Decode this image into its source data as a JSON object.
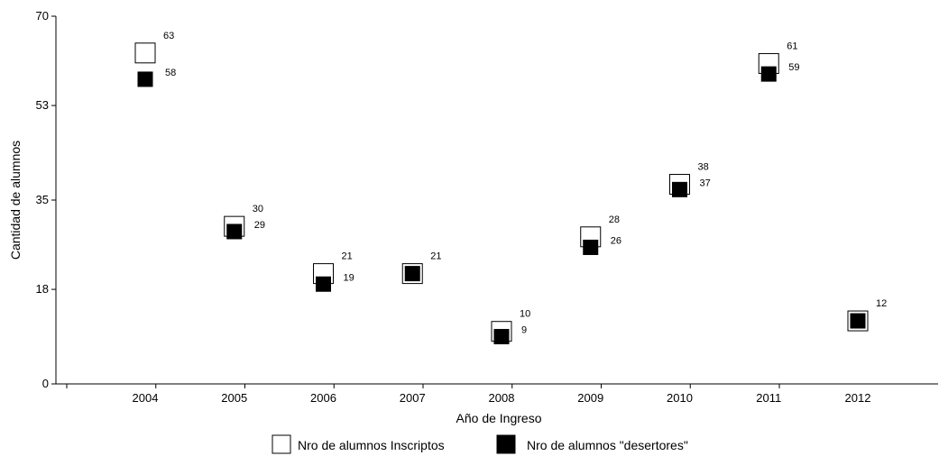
{
  "chart_data": {
    "type": "scatter",
    "categories": [
      "2004",
      "2005",
      "2006",
      "2007",
      "2008",
      "2009",
      "2010",
      "2011",
      "2012"
    ],
    "series": [
      {
        "name": "Nro de alumnos Inscriptos",
        "values": [
          63,
          30,
          21,
          21,
          10,
          28,
          38,
          61,
          12
        ],
        "marker": "open-square",
        "color": "#000000"
      },
      {
        "name": "Nro de alumnos \"desertores\"",
        "values": [
          58,
          29,
          19,
          21,
          9,
          26,
          37,
          59,
          12
        ],
        "marker": "filled-square",
        "color": "#000000"
      }
    ],
    "data_labels": {
      "inscriptos": [
        "63",
        "30",
        "21",
        "21",
        "10",
        "28",
        "38",
        "61",
        "12"
      ],
      "desertores": [
        "58",
        "29",
        "19",
        "",
        "9",
        "26",
        "37",
        "59",
        ""
      ]
    },
    "yticks": [
      "0",
      "18",
      "35",
      "53",
      "70"
    ],
    "ylim": [
      0,
      70
    ],
    "xlabel": "Año de Ingreso",
    "ylabel": "Cantidad de alumnos",
    "grid": false,
    "legend_position": "bottom"
  }
}
